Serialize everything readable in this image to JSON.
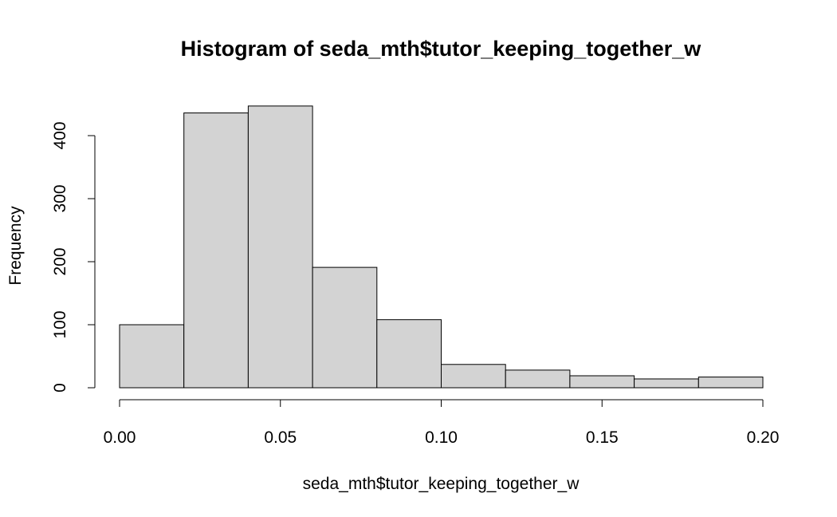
{
  "chart_data": {
    "type": "bar",
    "title": "Histogram of seda_mth$tutor_keeping_together_w",
    "xlabel": "seda_mth$tutor_keeping_together_w",
    "ylabel": "Frequency",
    "bin_edges": [
      0.0,
      0.02,
      0.04,
      0.06,
      0.08,
      0.1,
      0.12,
      0.14,
      0.16,
      0.18,
      0.2
    ],
    "values": [
      100,
      436,
      447,
      191,
      108,
      37,
      28,
      19,
      14,
      17
    ],
    "xlim": [
      0.0,
      0.2
    ],
    "ylim": [
      0,
      450
    ],
    "x_ticks": [
      "0.00",
      "0.05",
      "0.10",
      "0.15",
      "0.20"
    ],
    "y_ticks": [
      "0",
      "100",
      "200",
      "300",
      "400"
    ],
    "bar_color": "#d3d3d3",
    "grid": false,
    "legend": "none"
  }
}
